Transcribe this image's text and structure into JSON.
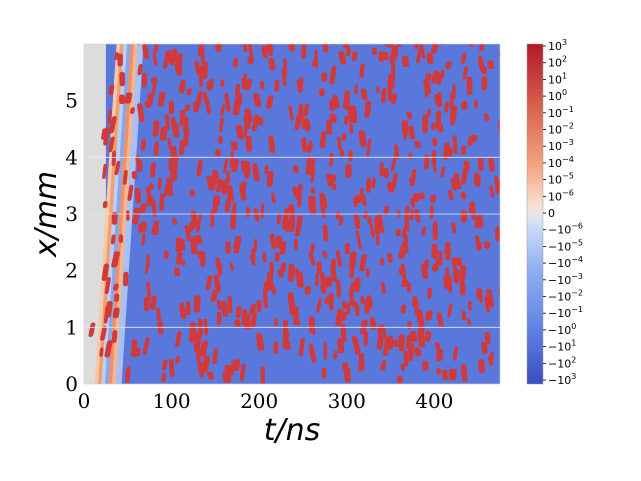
{
  "chart_data": {
    "type": "heatmap",
    "title": "",
    "xlabel": "t/ns",
    "ylabel": "x/mm",
    "xlim": [
      0,
      475
    ],
    "ylim": [
      0,
      6
    ],
    "x_ticks": [
      "0",
      "100",
      "200",
      "300",
      "400"
    ],
    "x_tick_values": [
      0,
      100,
      200,
      300,
      400
    ],
    "y_ticks": [
      "0",
      "1",
      "2",
      "3",
      "4",
      "5"
    ],
    "y_tick_values": [
      0,
      1,
      2,
      3,
      4,
      5
    ],
    "grid_lines_y": [
      1,
      3,
      4
    ],
    "colorscale": "symmetric log, blue (negative) to red (positive)",
    "colors": {
      "positive": "#d03a3a",
      "negative": "#5472dd",
      "zero": "#dcdcdc"
    },
    "colorbar": {
      "position": "right",
      "labels": [
        {
          "base": "10",
          "exp": "3"
        },
        {
          "base": "10",
          "exp": "2"
        },
        {
          "base": "10",
          "exp": "1"
        },
        {
          "base": "10",
          "exp": "0"
        },
        {
          "base": "10",
          "exp": "−1"
        },
        {
          "base": "10",
          "exp": "−2"
        },
        {
          "base": "10",
          "exp": "−3"
        },
        {
          "base": "10",
          "exp": "−4"
        },
        {
          "base": "10",
          "exp": "−5"
        },
        {
          "base": "10",
          "exp": "−6"
        },
        {
          "base": "0",
          "exp": ""
        },
        {
          "base": "−10",
          "exp": "−6"
        },
        {
          "base": "−10",
          "exp": "−5"
        },
        {
          "base": "−10",
          "exp": "−4"
        },
        {
          "base": "−10",
          "exp": "−3"
        },
        {
          "base": "−10",
          "exp": "−2"
        },
        {
          "base": "−10",
          "exp": "−1"
        },
        {
          "base": "−10",
          "exp": "0"
        },
        {
          "base": "−10",
          "exp": "1"
        },
        {
          "base": "−10",
          "exp": "2"
        },
        {
          "base": "−10",
          "exp": "3"
        }
      ]
    }
  }
}
